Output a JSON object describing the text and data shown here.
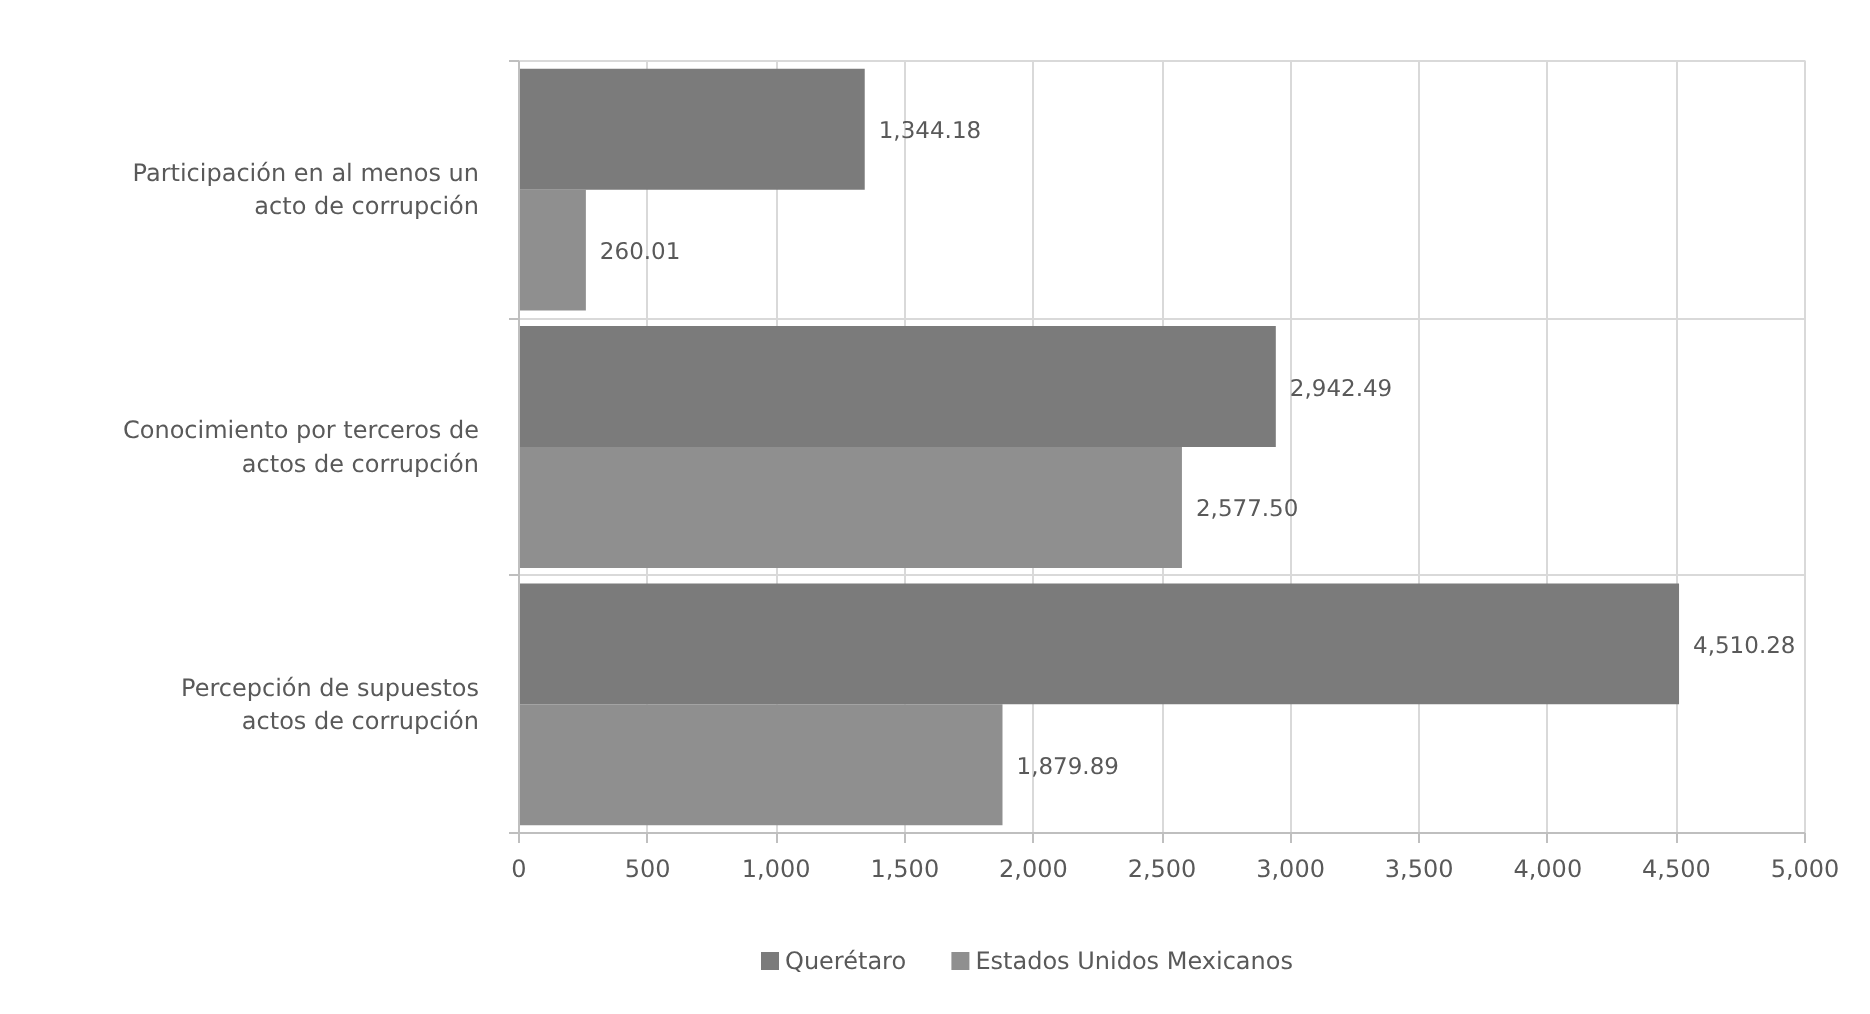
{
  "chart_data": {
    "type": "bar",
    "orientation": "horizontal",
    "categories": [
      "Participación en al menos un acto de corrupción",
      "Conocimiento por terceros de actos de corrupción",
      "Percepción de supuestos actos de corrupción"
    ],
    "series": [
      {
        "name": "Querétaro",
        "color": "#7b7b7b",
        "values": [
          1344.18,
          2942.49,
          4510.28
        ],
        "value_labels": [
          "1,344.18",
          "2,942.49",
          "4,510.28"
        ]
      },
      {
        "name": "Estados Unidos Mexicanos",
        "color": "#8f8f8f",
        "values": [
          260.01,
          2577.5,
          1879.89
        ],
        "value_labels": [
          "260.01",
          "2,577.50",
          "1,879.89"
        ]
      }
    ],
    "xlim": [
      0,
      5000
    ],
    "xticks": [
      0,
      500,
      {
        "value": 1000,
        "label": "1,000"
      },
      {
        "value": 1500,
        "label": "1,500"
      },
      {
        "value": 2000,
        "label": "2,000"
      },
      {
        "value": 2500,
        "label": "2,500"
      },
      {
        "value": 3000,
        "label": "3,000"
      },
      {
        "value": 3500,
        "label": "3,500"
      },
      {
        "value": 4000,
        "label": "4,000"
      },
      {
        "value": 4500,
        "label": "4,500"
      },
      {
        "value": 5000,
        "label": "5,000"
      }
    ],
    "grid": true,
    "legend": "bottom"
  }
}
